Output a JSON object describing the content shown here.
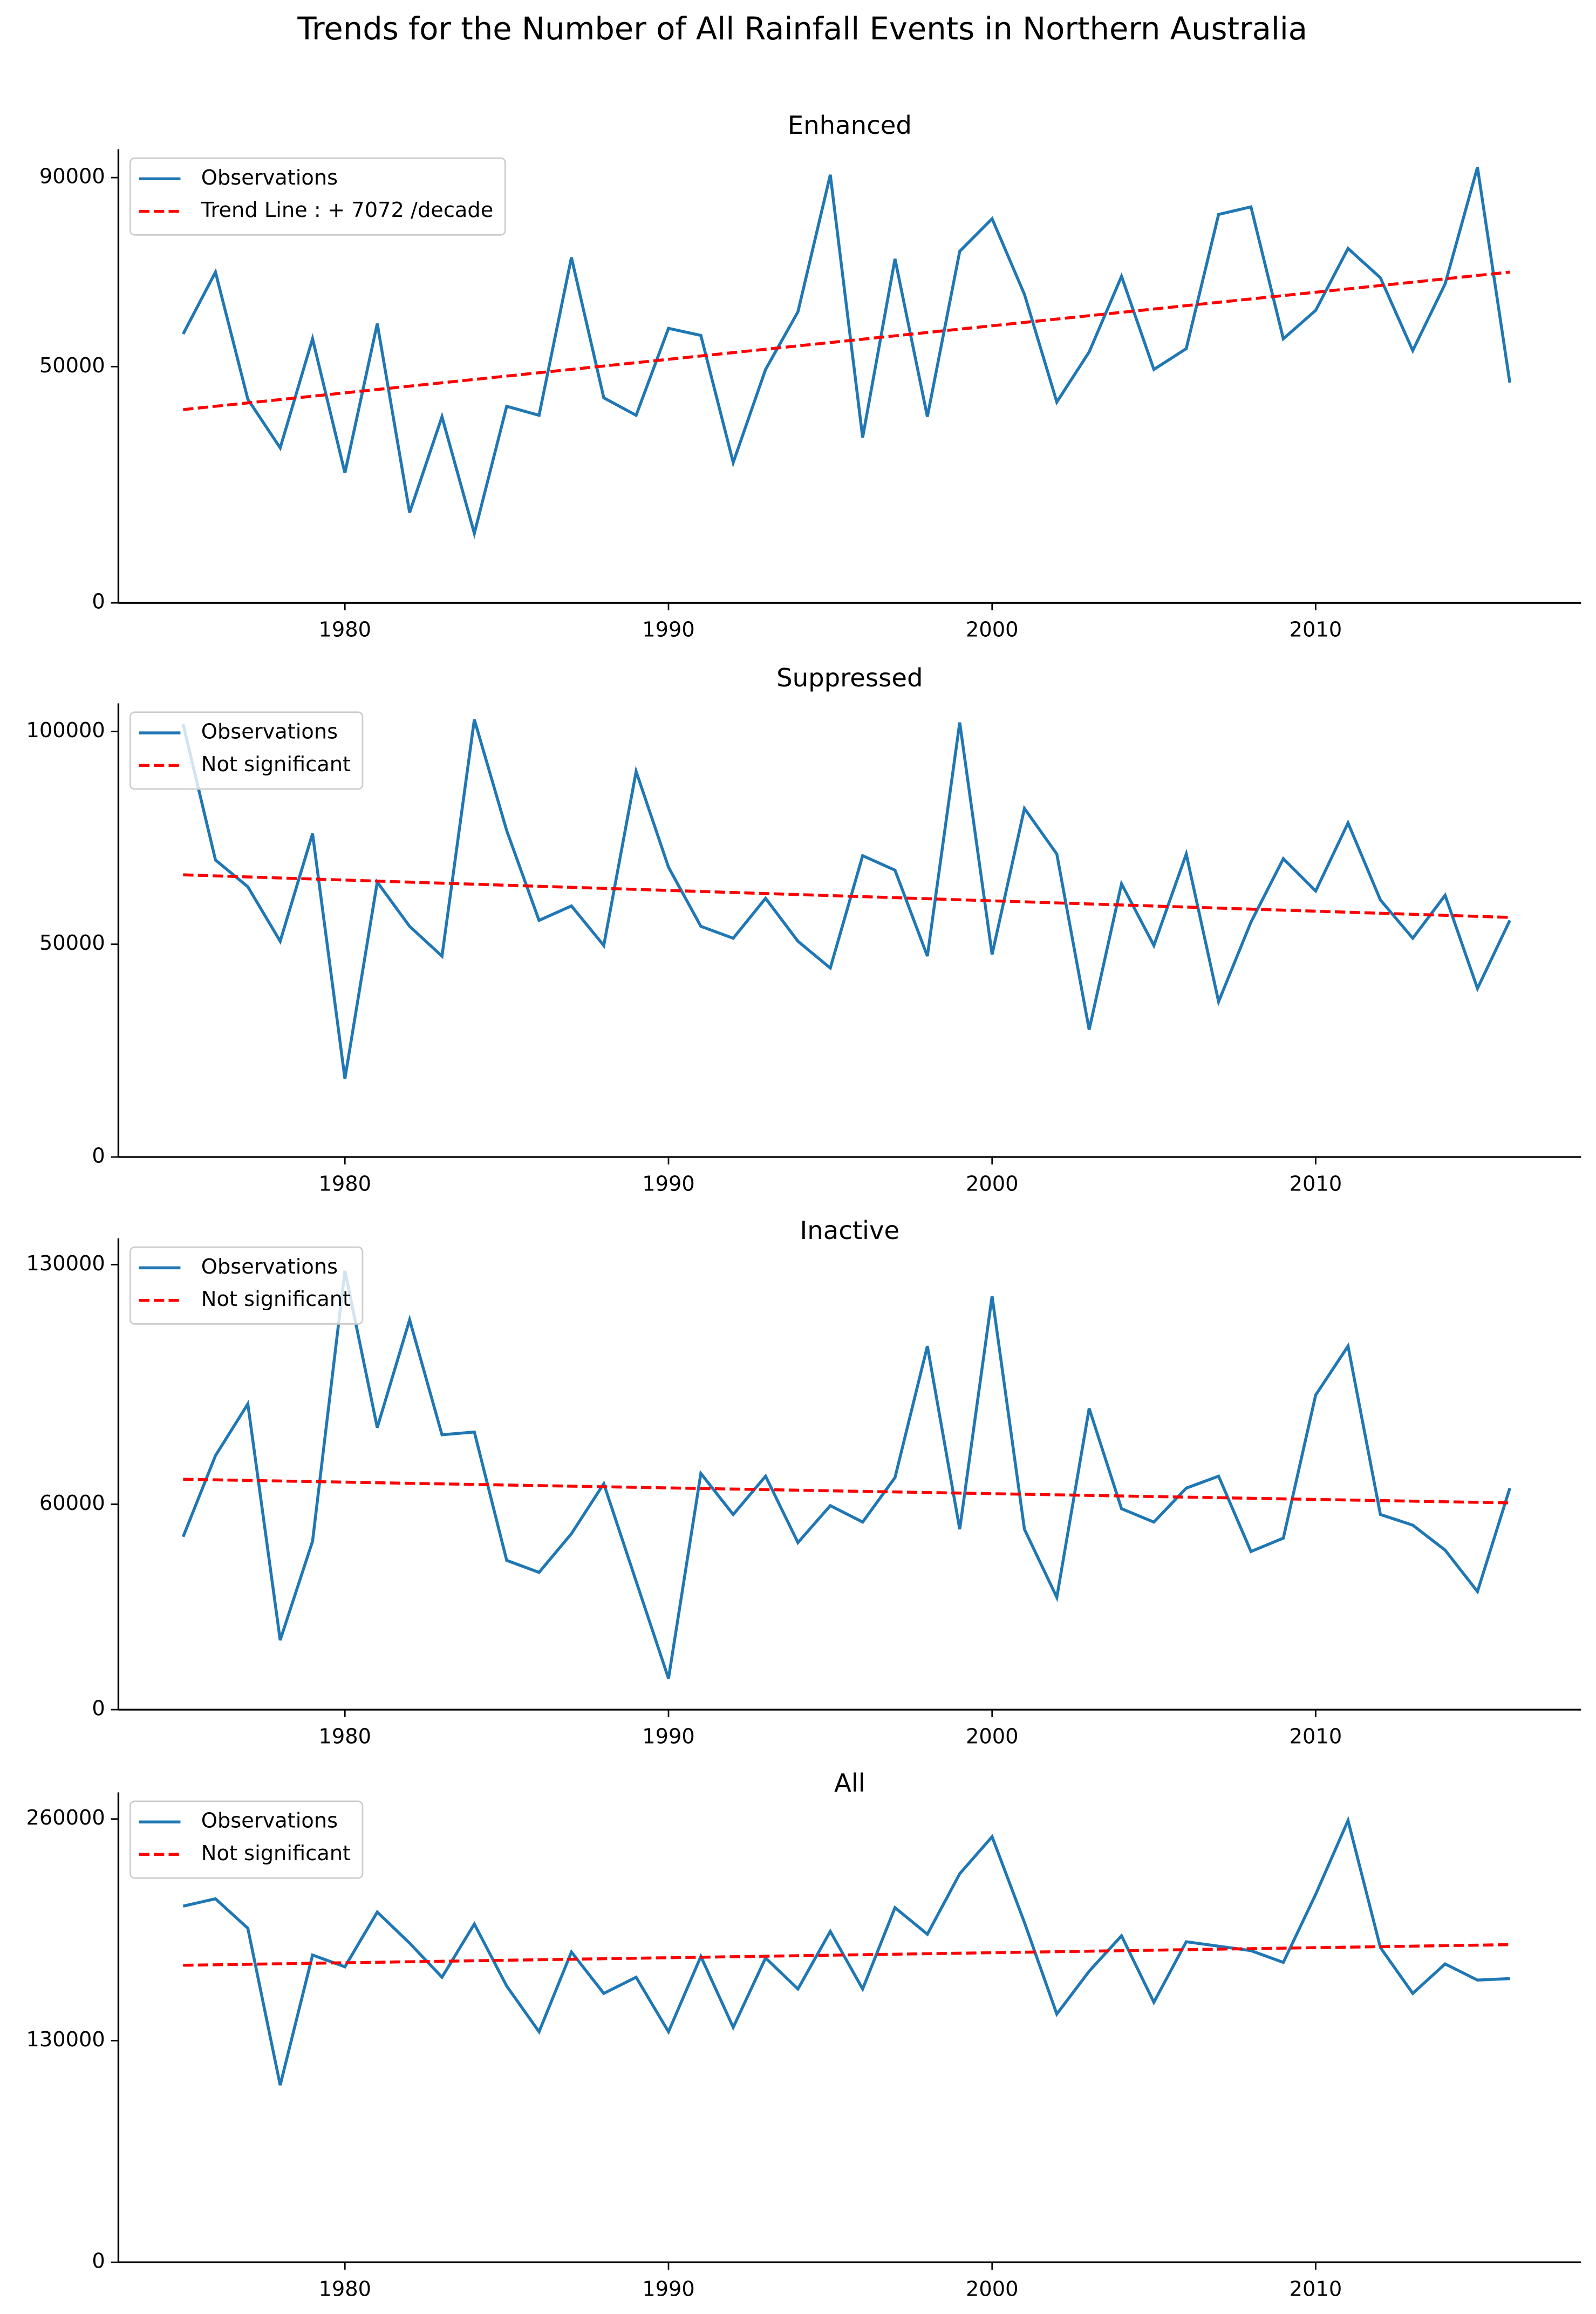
{
  "title": "Trends for the Number of All Rainfall Events in Northern Australia",
  "chart_data": [
    {
      "type": "line",
      "title": "Enhanced",
      "legend": "upper left",
      "x": [
        1975,
        1976,
        1977,
        1978,
        1979,
        1980,
        1981,
        1982,
        1983,
        1984,
        1985,
        1986,
        1987,
        1988,
        1989,
        1990,
        1991,
        1992,
        1993,
        1994,
        1995,
        1996,
        1997,
        1998,
        1999,
        2000,
        2001,
        2002,
        2003,
        2004,
        2005,
        2006,
        2007,
        2008,
        2009,
        2010,
        2011,
        2012,
        2013,
        2014,
        2015,
        2016
      ],
      "xlim": [
        1973,
        2018.2
      ],
      "xticks": [
        1980,
        1990,
        2000,
        2010
      ],
      "ylim": [
        0,
        96000
      ],
      "yticks": [
        0,
        50000,
        90000
      ],
      "series": [
        {
          "name": "Observations",
          "color": "#1f77b4",
          "style": "solid",
          "values": [
            56900,
            70000,
            43100,
            32800,
            55900,
            27500,
            59100,
            19100,
            39400,
            14700,
            41600,
            39700,
            73100,
            43400,
            39700,
            58100,
            56600,
            29700,
            49400,
            61600,
            90600,
            35000,
            72800,
            39400,
            74400,
            81300,
            65300,
            42500,
            53100,
            69100,
            49400,
            53800,
            82200,
            83800,
            55900,
            61900,
            75000,
            68800,
            53400,
            67500,
            92200,
            46600
          ]
        },
        {
          "name": "Trend Line : + 7072 /decade",
          "color": "#ff0000",
          "style": "dashed",
          "x": [
            1975,
            2016
          ],
          "values": [
            40900,
            70000
          ]
        }
      ]
    },
    {
      "type": "line",
      "title": "Suppressed",
      "legend": "upper left",
      "x": [
        1975,
        1976,
        1977,
        1978,
        1979,
        1980,
        1981,
        1982,
        1983,
        1984,
        1985,
        1986,
        1987,
        1988,
        1989,
        1990,
        1991,
        1992,
        1993,
        1994,
        1995,
        1996,
        1997,
        1998,
        1999,
        2000,
        2001,
        2002,
        2003,
        2004,
        2005,
        2006,
        2007,
        2008,
        2009,
        2010,
        2011,
        2012,
        2013,
        2014,
        2015,
        2016
      ],
      "xlim": [
        1973,
        2018.2
      ],
      "xticks": [
        1980,
        1990,
        2000,
        2010
      ],
      "ylim": [
        0,
        106600
      ],
      "yticks": [
        0,
        50000,
        100000
      ],
      "series": [
        {
          "name": "Observations",
          "color": "#1f77b4",
          "style": "solid",
          "values": [
            101700,
            69800,
            63500,
            50700,
            76000,
            18400,
            64600,
            54200,
            47200,
            102800,
            76700,
            55600,
            59000,
            49700,
            90600,
            68100,
            54200,
            51400,
            60800,
            50700,
            44400,
            70800,
            67400,
            47200,
            102100,
            47600,
            81900,
            71200,
            29900,
            64200,
            49700,
            71200,
            36500,
            55200,
            70100,
            62500,
            78500,
            60400,
            51400,
            61500,
            39600,
            55600
          ]
        },
        {
          "name": "Not significant",
          "color": "#ff0000",
          "style": "dashed",
          "x": [
            1975,
            2016
          ],
          "values": [
            66300,
            56300
          ]
        }
      ]
    },
    {
      "type": "line",
      "title": "Inactive",
      "legend": "upper left",
      "x": [
        1975,
        1976,
        1977,
        1978,
        1979,
        1980,
        1981,
        1982,
        1983,
        1984,
        1985,
        1986,
        1987,
        1988,
        1989,
        1990,
        1991,
        1992,
        1993,
        1994,
        1995,
        1996,
        1997,
        1998,
        1999,
        2000,
        2001,
        2002,
        2003,
        2004,
        2005,
        2006,
        2007,
        2008,
        2009,
        2010,
        2011,
        2012,
        2013,
        2014,
        2015,
        2016
      ],
      "xlim": [
        1973,
        2018.2
      ],
      "xticks": [
        1980,
        1990,
        2000,
        2010
      ],
      "ylim": [
        0,
        137700
      ],
      "yticks": [
        0,
        60000,
        130000
      ],
      "series": [
        {
          "name": "Observations",
          "color": "#1f77b4",
          "style": "solid",
          "values": [
            50500,
            74200,
            89300,
            20300,
            49200,
            128200,
            82400,
            113900,
            80300,
            81100,
            43600,
            40100,
            51400,
            66000,
            37500,
            9100,
            69000,
            57000,
            68200,
            48800,
            59600,
            54800,
            67800,
            106200,
            52700,
            120800,
            52700,
            32800,
            88000,
            58700,
            54800,
            64700,
            68200,
            46200,
            50100,
            91900,
            106200,
            57000,
            53900,
            46600,
            34500,
            64700
          ]
        },
        {
          "name": "Not significant",
          "color": "#ff0000",
          "style": "dashed",
          "x": [
            1975,
            2016
          ],
          "values": [
            67300,
            60400
          ]
        }
      ]
    },
    {
      "type": "line",
      "title": "All",
      "legend": "upper left",
      "x": [
        1975,
        1976,
        1977,
        1978,
        1979,
        1980,
        1981,
        1982,
        1983,
        1984,
        1985,
        1986,
        1987,
        1988,
        1989,
        1990,
        1991,
        1992,
        1993,
        1994,
        1995,
        1996,
        1997,
        1998,
        1999,
        2000,
        2001,
        2002,
        2003,
        2004,
        2005,
        2006,
        2007,
        2008,
        2009,
        2010,
        2011,
        2012,
        2013,
        2014,
        2015,
        2016
      ],
      "xlim": [
        1973,
        2018.2
      ],
      "xticks": [
        1980,
        1990,
        2000,
        2010
      ],
      "ylim": [
        0,
        275600
      ],
      "yticks": [
        0,
        130000,
        260000
      ],
      "series": [
        {
          "name": "Observations",
          "color": "#1f77b4",
          "style": "solid",
          "values": [
            208900,
            213200,
            195900,
            103900,
            180200,
            173300,
            205400,
            187200,
            167200,
            198400,
            162000,
            135200,
            182000,
            157700,
            167200,
            135200,
            179400,
            137800,
            178500,
            160300,
            194100,
            160300,
            208000,
            192400,
            227900,
            249600,
            199300,
            145600,
            170700,
            191500,
            152500,
            188000,
            185400,
            182800,
            175900,
            215800,
            259100,
            184600,
            157700,
            175000,
            165500,
            166400
          ]
        },
        {
          "name": "Not significant",
          "color": "#ff0000",
          "style": "dashed",
          "x": [
            1975,
            2016
          ],
          "values": [
            174200,
            186300
          ]
        }
      ]
    }
  ]
}
